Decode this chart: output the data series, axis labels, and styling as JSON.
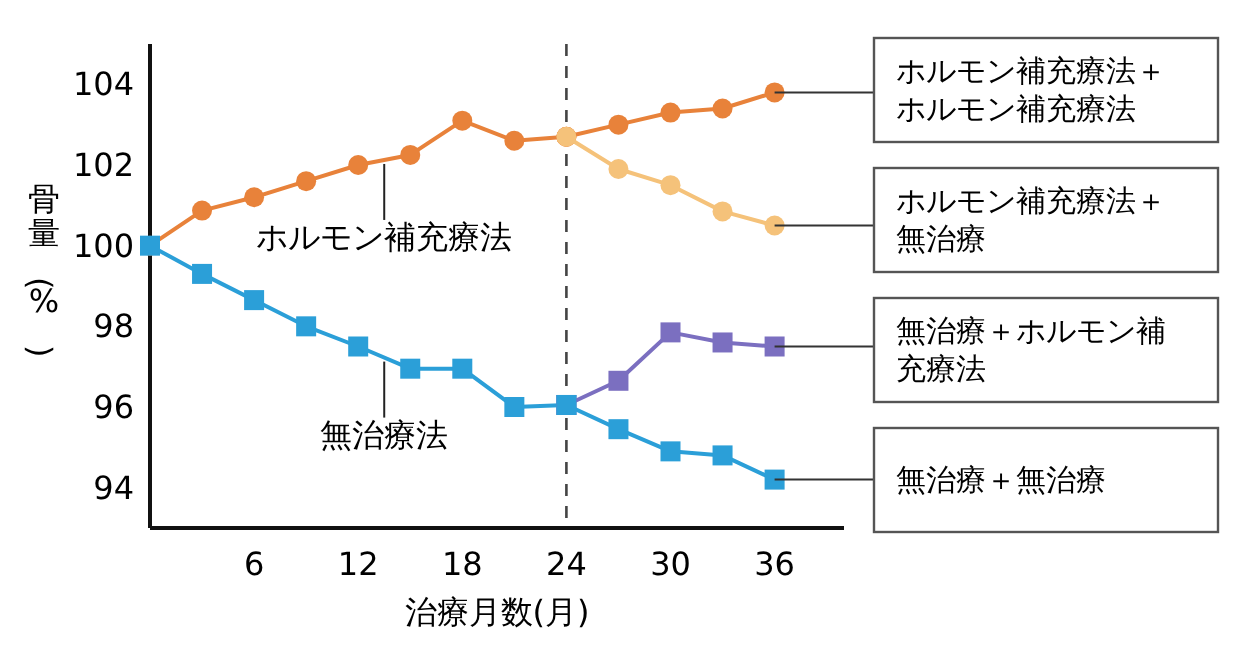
{
  "chart_data": {
    "type": "line",
    "xlabel": "治療月数(月)",
    "ylabel": "骨量(%)",
    "xlim": [
      0,
      40
    ],
    "ylim": [
      93,
      105
    ],
    "xticks": [
      6,
      12,
      18,
      24,
      30,
      36
    ],
    "yticks": [
      94,
      96,
      98,
      100,
      102,
      104
    ],
    "legend": "right",
    "grid": false,
    "ref_lines": [
      {
        "axis": "x",
        "value": 24,
        "line_style": "dashed",
        "color": "#444444"
      }
    ],
    "series": [
      {
        "name": "ホルモン補充療法",
        "color": "#e8823a",
        "marker": "circle",
        "x": [
          0,
          3,
          6,
          9,
          12,
          15,
          18,
          21,
          24
        ],
        "values": [
          100,
          100.87,
          101.2,
          101.6,
          102.0,
          102.25,
          103.1,
          102.6,
          102.7
        ]
      },
      {
        "name": "無治療法",
        "color": "#2b9fd8",
        "marker": "square",
        "x": [
          0,
          3,
          6,
          9,
          12,
          15,
          18,
          21,
          24
        ],
        "values": [
          100,
          99.3,
          98.65,
          98.0,
          97.5,
          96.95,
          96.95,
          96.0,
          96.05
        ]
      },
      {
        "name": "ホルモン補充療法＋ホルモン補充療法",
        "color": "#e8823a",
        "marker": "circle",
        "x": [
          24,
          27,
          30,
          33,
          36
        ],
        "values": [
          102.7,
          103.0,
          103.3,
          103.4,
          103.8
        ]
      },
      {
        "name": "ホルモン補充療法＋無治療",
        "color": "#f5c27a",
        "marker": "circle",
        "x": [
          24,
          27,
          30,
          33,
          36
        ],
        "values": [
          102.7,
          101.9,
          101.5,
          100.85,
          100.5
        ]
      },
      {
        "name": "無治療＋ホルモン補充療法",
        "color": "#7b6fc0",
        "marker": "square",
        "x": [
          24,
          27,
          30,
          33,
          36
        ],
        "values": [
          96.05,
          96.65,
          97.85,
          97.6,
          97.5
        ]
      },
      {
        "name": "無治療＋無治療",
        "color": "#2b9fd8",
        "marker": "square",
        "x": [
          24,
          27,
          30,
          33,
          36
        ],
        "values": [
          96.05,
          95.45,
          94.9,
          94.8,
          94.2
        ]
      }
    ]
  }
}
